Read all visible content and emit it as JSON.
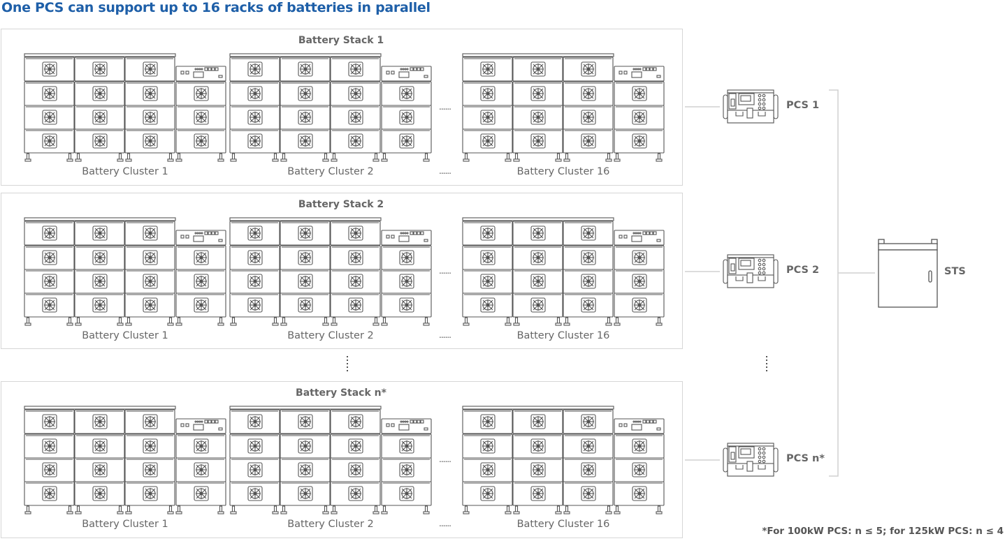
{
  "title": "One PCS can support up to 16 racks of batteries in parallel",
  "stacks": [
    {
      "title": "Battery Stack 1",
      "clusters": [
        "Battery Cluster 1",
        "Battery Cluster 2",
        "Battery Cluster 16"
      ]
    },
    {
      "title": "Battery Stack 2",
      "clusters": [
        "Battery Cluster 1",
        "Battery Cluster 2",
        "Battery Cluster 16"
      ]
    },
    {
      "title": "Battery Stack n*",
      "clusters": [
        "Battery Cluster 1",
        "Battery Cluster 2",
        "Battery Cluster 16"
      ]
    }
  ],
  "ellipsis": "......",
  "pcs": [
    "PCS 1",
    "PCS 2",
    "PCS n*"
  ],
  "sts": "STS",
  "footnote": "*For 100kW PCS: n ≤ 5; for 125kW PCS: n ≤ 4",
  "colors": {
    "title": "#1e5fa8",
    "line": "#d0d0d0",
    "equipment_stroke": "#555555",
    "text": "#666666"
  }
}
